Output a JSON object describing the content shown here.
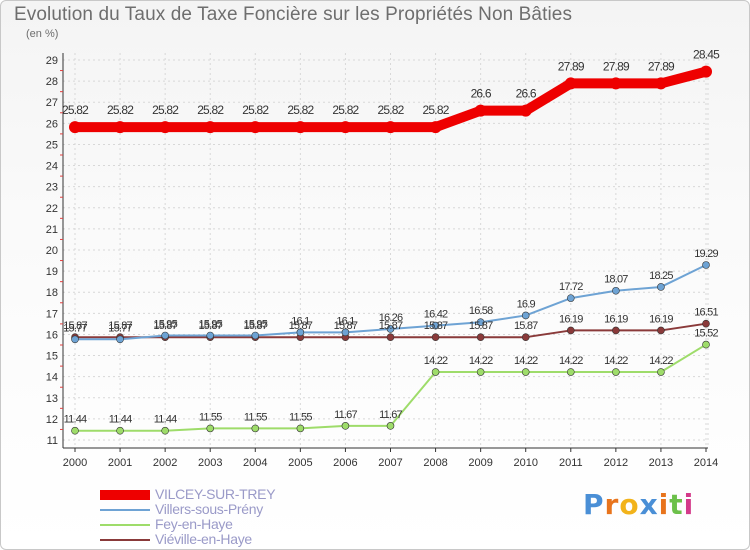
{
  "chart_data": {
    "type": "line",
    "title": "Evolution du Taux de Taxe Foncière sur les Propriétés Non Bâties",
    "ylabel": "(en %)",
    "xlabel": "",
    "ylim": [
      11,
      29
    ],
    "yticks": [
      "11",
      "12",
      "13",
      "14",
      "15",
      "16",
      "17",
      "18",
      "19",
      "20",
      "21",
      "22",
      "23",
      "24",
      "25",
      "26",
      "27",
      "28",
      "29"
    ],
    "categories": [
      "2000",
      "2001",
      "2002",
      "2003",
      "2004",
      "2005",
      "2006",
      "2007",
      "2008",
      "2009",
      "2010",
      "2011",
      "2012",
      "2013",
      "2014"
    ],
    "grid": true,
    "series": [
      {
        "name": "VILCEY-SUR-TREY",
        "color": "#ee0000",
        "values": [
          25.82,
          25.82,
          25.82,
          25.82,
          25.82,
          25.82,
          25.82,
          25.82,
          25.82,
          26.6,
          26.6,
          27.89,
          27.89,
          27.89,
          28.45
        ],
        "labels": [
          "25.82",
          "25.82",
          "25.82",
          "25.82",
          "25.82",
          "25.82",
          "25.82",
          "25.82",
          "25.82",
          "26.6",
          "26.6",
          "27.89",
          "27.89",
          "27.89",
          "28.45"
        ]
      },
      {
        "name": "Villers-sous-Prény",
        "color": "#6ea3d4",
        "values": [
          15.77,
          15.77,
          15.95,
          15.95,
          15.95,
          16.1,
          16.1,
          16.26,
          16.42,
          16.58,
          16.9,
          17.72,
          18.07,
          18.25,
          19.29
        ],
        "labels": [
          "15.77",
          "15.77",
          "15.95",
          "15.95",
          "15.95",
          "16.1",
          "16.1",
          "16.26",
          "16.42",
          "16.58",
          "16.9",
          "17.72",
          "18.07",
          "18.25",
          "19.29"
        ]
      },
      {
        "name": "Fey-en-Haye",
        "color": "#9edc6a",
        "values": [
          11.44,
          11.44,
          11.44,
          11.55,
          11.55,
          11.55,
          11.67,
          11.67,
          14.22,
          14.22,
          14.22,
          14.22,
          14.22,
          14.22,
          15.52
        ],
        "labels": [
          "11.44",
          "11.44",
          "11.44",
          "11.55",
          "11.55",
          "11.55",
          "11.67",
          "11.67",
          "14.22",
          "14.22",
          "14.22",
          "14.22",
          "14.22",
          "14.22",
          "15.52"
        ]
      },
      {
        "name": "Viéville-en-Haye",
        "color": "#8a3a3a",
        "values": [
          15.87,
          15.87,
          15.87,
          15.87,
          15.87,
          15.87,
          15.87,
          15.87,
          15.87,
          15.87,
          15.87,
          16.19,
          16.19,
          16.19,
          16.51
        ],
        "labels": [
          "15.87",
          "15.87",
          "15.87",
          "15.87",
          "15.87",
          "15.87",
          "15.87",
          "15.87",
          "15.87",
          "15.87",
          "15.87",
          "16.19",
          "16.19",
          "16.19",
          "16.51"
        ]
      }
    ],
    "legend_position": "bottom-left"
  },
  "brand": {
    "letters": [
      "P",
      "r",
      "o",
      "x",
      "i",
      "t",
      "i"
    ],
    "colors": [
      "#4a8fd6",
      "#e8741c",
      "#f2b31a",
      "#4a8fd6",
      "#e8741c",
      "#6cc04a",
      "#d43a8a"
    ]
  }
}
